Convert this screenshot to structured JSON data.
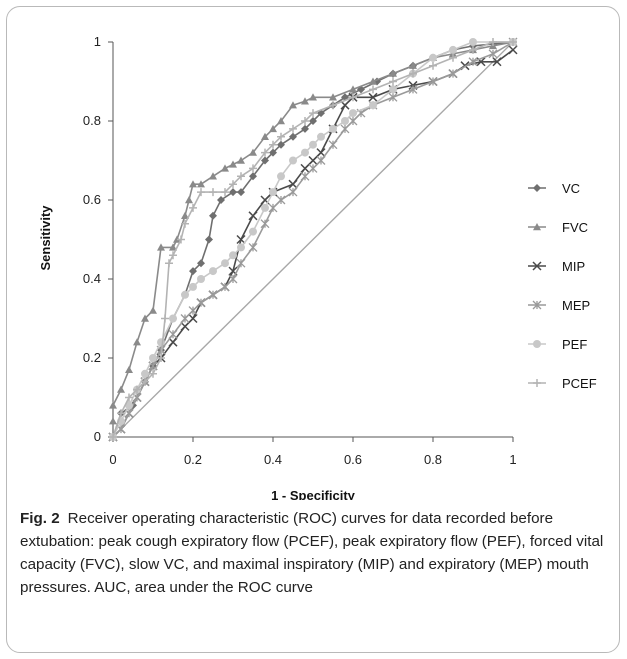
{
  "caption": {
    "label": "Fig. 2",
    "text": "Receiver operating characteristic (ROC) curves for data recorded before extubation: peak cough expiratory flow (PCEF), peak expiratory flow (PEF), forced vital capacity (FVC), slow VC, and maximal inspiratory (MIP) and expiratory (MEP) mouth pressures. AUC, area under the ROC curve"
  },
  "chart_data": {
    "type": "line",
    "title": "",
    "xlabel": "1 - Specificity",
    "ylabel": "Sensitivity",
    "xlim": [
      0,
      1
    ],
    "ylim": [
      0,
      1
    ],
    "x_ticks": [
      "0",
      "0.2",
      "0.4",
      "0.6",
      "0.8",
      "1"
    ],
    "y_ticks": [
      "0",
      "0.2",
      "0.4",
      "0.6",
      "0.8",
      "1"
    ],
    "grid": false,
    "legend_position": "right",
    "reference_line": [
      [
        0,
        0
      ],
      [
        1,
        1
      ]
    ],
    "series": [
      {
        "name": "VC",
        "color": "#6f6f6f",
        "marker": "diamond",
        "points": [
          [
            0,
            0
          ],
          [
            0.02,
            0.06
          ],
          [
            0.05,
            0.08
          ],
          [
            0.08,
            0.14
          ],
          [
            0.1,
            0.18
          ],
          [
            0.12,
            0.22
          ],
          [
            0.15,
            0.3
          ],
          [
            0.18,
            0.36
          ],
          [
            0.2,
            0.42
          ],
          [
            0.22,
            0.44
          ],
          [
            0.24,
            0.5
          ],
          [
            0.25,
            0.56
          ],
          [
            0.27,
            0.6
          ],
          [
            0.3,
            0.62
          ],
          [
            0.32,
            0.62
          ],
          [
            0.35,
            0.66
          ],
          [
            0.38,
            0.7
          ],
          [
            0.4,
            0.72
          ],
          [
            0.42,
            0.74
          ],
          [
            0.45,
            0.76
          ],
          [
            0.48,
            0.78
          ],
          [
            0.5,
            0.8
          ],
          [
            0.52,
            0.82
          ],
          [
            0.55,
            0.84
          ],
          [
            0.58,
            0.86
          ],
          [
            0.62,
            0.88
          ],
          [
            0.66,
            0.9
          ],
          [
            0.7,
            0.92
          ],
          [
            0.75,
            0.94
          ],
          [
            0.8,
            0.96
          ],
          [
            0.85,
            0.98
          ],
          [
            0.9,
            0.99
          ],
          [
            1,
            1
          ]
        ]
      },
      {
        "name": "FVC",
        "color": "#8a8a8a",
        "marker": "triangle",
        "points": [
          [
            0,
            0
          ],
          [
            0,
            0.04
          ],
          [
            0,
            0.08
          ],
          [
            0.02,
            0.12
          ],
          [
            0.04,
            0.17
          ],
          [
            0.06,
            0.24
          ],
          [
            0.08,
            0.3
          ],
          [
            0.1,
            0.32
          ],
          [
            0.12,
            0.48
          ],
          [
            0.15,
            0.48
          ],
          [
            0.16,
            0.5
          ],
          [
            0.18,
            0.56
          ],
          [
            0.19,
            0.6
          ],
          [
            0.2,
            0.64
          ],
          [
            0.22,
            0.64
          ],
          [
            0.25,
            0.66
          ],
          [
            0.28,
            0.68
          ],
          [
            0.3,
            0.69
          ],
          [
            0.32,
            0.7
          ],
          [
            0.35,
            0.72
          ],
          [
            0.38,
            0.76
          ],
          [
            0.4,
            0.78
          ],
          [
            0.42,
            0.8
          ],
          [
            0.45,
            0.84
          ],
          [
            0.48,
            0.85
          ],
          [
            0.5,
            0.86
          ],
          [
            0.55,
            0.86
          ],
          [
            0.6,
            0.88
          ],
          [
            0.65,
            0.9
          ],
          [
            0.7,
            0.92
          ],
          [
            0.75,
            0.94
          ],
          [
            0.8,
            0.96
          ],
          [
            0.85,
            0.97
          ],
          [
            0.9,
            0.98
          ],
          [
            0.95,
            0.99
          ],
          [
            1,
            1
          ]
        ]
      },
      {
        "name": "MIP",
        "color": "#4a4a4a",
        "marker": "x",
        "points": [
          [
            0,
            0
          ],
          [
            0.02,
            0.02
          ],
          [
            0.04,
            0.06
          ],
          [
            0.06,
            0.1
          ],
          [
            0.08,
            0.14
          ],
          [
            0.1,
            0.18
          ],
          [
            0.12,
            0.2
          ],
          [
            0.15,
            0.24
          ],
          [
            0.18,
            0.28
          ],
          [
            0.2,
            0.3
          ],
          [
            0.22,
            0.34
          ],
          [
            0.25,
            0.36
          ],
          [
            0.28,
            0.38
          ],
          [
            0.3,
            0.42
          ],
          [
            0.32,
            0.5
          ],
          [
            0.35,
            0.56
          ],
          [
            0.38,
            0.6
          ],
          [
            0.4,
            0.62
          ],
          [
            0.45,
            0.64
          ],
          [
            0.48,
            0.68
          ],
          [
            0.5,
            0.7
          ],
          [
            0.52,
            0.72
          ],
          [
            0.55,
            0.78
          ],
          [
            0.58,
            0.84
          ],
          [
            0.6,
            0.86
          ],
          [
            0.65,
            0.86
          ],
          [
            0.7,
            0.88
          ],
          [
            0.75,
            0.89
          ],
          [
            0.8,
            0.9
          ],
          [
            0.85,
            0.92
          ],
          [
            0.88,
            0.94
          ],
          [
            0.92,
            0.95
          ],
          [
            0.96,
            0.95
          ],
          [
            1,
            0.98
          ]
        ]
      },
      {
        "name": "MEP",
        "color": "#9a9a9a",
        "marker": "asterisk",
        "points": [
          [
            0,
            0
          ],
          [
            0.02,
            0.02
          ],
          [
            0.04,
            0.06
          ],
          [
            0.06,
            0.1
          ],
          [
            0.08,
            0.14
          ],
          [
            0.1,
            0.18
          ],
          [
            0.12,
            0.22
          ],
          [
            0.15,
            0.26
          ],
          [
            0.18,
            0.3
          ],
          [
            0.2,
            0.32
          ],
          [
            0.22,
            0.34
          ],
          [
            0.25,
            0.36
          ],
          [
            0.28,
            0.38
          ],
          [
            0.3,
            0.4
          ],
          [
            0.32,
            0.44
          ],
          [
            0.35,
            0.48
          ],
          [
            0.38,
            0.54
          ],
          [
            0.4,
            0.58
          ],
          [
            0.42,
            0.6
          ],
          [
            0.45,
            0.62
          ],
          [
            0.48,
            0.66
          ],
          [
            0.5,
            0.68
          ],
          [
            0.52,
            0.7
          ],
          [
            0.55,
            0.74
          ],
          [
            0.58,
            0.78
          ],
          [
            0.6,
            0.8
          ],
          [
            0.62,
            0.82
          ],
          [
            0.65,
            0.84
          ],
          [
            0.7,
            0.86
          ],
          [
            0.75,
            0.88
          ],
          [
            0.8,
            0.9
          ],
          [
            0.85,
            0.92
          ],
          [
            0.9,
            0.95
          ],
          [
            0.95,
            0.97
          ],
          [
            1,
            1
          ]
        ]
      },
      {
        "name": "PEF",
        "color": "#c8c8c8",
        "marker": "circle",
        "points": [
          [
            0,
            0
          ],
          [
            0.02,
            0.04
          ],
          [
            0.04,
            0.08
          ],
          [
            0.06,
            0.12
          ],
          [
            0.08,
            0.16
          ],
          [
            0.1,
            0.2
          ],
          [
            0.12,
            0.24
          ],
          [
            0.15,
            0.3
          ],
          [
            0.18,
            0.36
          ],
          [
            0.2,
            0.38
          ],
          [
            0.22,
            0.4
          ],
          [
            0.25,
            0.42
          ],
          [
            0.28,
            0.44
          ],
          [
            0.3,
            0.46
          ],
          [
            0.32,
            0.48
          ],
          [
            0.35,
            0.52
          ],
          [
            0.38,
            0.58
          ],
          [
            0.4,
            0.62
          ],
          [
            0.42,
            0.66
          ],
          [
            0.45,
            0.7
          ],
          [
            0.48,
            0.72
          ],
          [
            0.5,
            0.74
          ],
          [
            0.52,
            0.76
          ],
          [
            0.55,
            0.78
          ],
          [
            0.58,
            0.8
          ],
          [
            0.6,
            0.82
          ],
          [
            0.65,
            0.84
          ],
          [
            0.7,
            0.88
          ],
          [
            0.75,
            0.92
          ],
          [
            0.8,
            0.96
          ],
          [
            0.85,
            0.98
          ],
          [
            0.9,
            1
          ],
          [
            1,
            1
          ]
        ]
      },
      {
        "name": "PCEF",
        "color": "#b3b3b3",
        "marker": "plus",
        "points": [
          [
            0,
            0
          ],
          [
            0.02,
            0.06
          ],
          [
            0.04,
            0.1
          ],
          [
            0.06,
            0.12
          ],
          [
            0.08,
            0.14
          ],
          [
            0.1,
            0.16
          ],
          [
            0.12,
            0.2
          ],
          [
            0.13,
            0.3
          ],
          [
            0.14,
            0.44
          ],
          [
            0.15,
            0.46
          ],
          [
            0.17,
            0.5
          ],
          [
            0.18,
            0.54
          ],
          [
            0.2,
            0.58
          ],
          [
            0.22,
            0.62
          ],
          [
            0.25,
            0.62
          ],
          [
            0.28,
            0.62
          ],
          [
            0.3,
            0.64
          ],
          [
            0.32,
            0.66
          ],
          [
            0.35,
            0.68
          ],
          [
            0.38,
            0.72
          ],
          [
            0.4,
            0.74
          ],
          [
            0.42,
            0.76
          ],
          [
            0.45,
            0.78
          ],
          [
            0.48,
            0.8
          ],
          [
            0.5,
            0.82
          ],
          [
            0.55,
            0.84
          ],
          [
            0.6,
            0.86
          ],
          [
            0.65,
            0.88
          ],
          [
            0.7,
            0.9
          ],
          [
            0.75,
            0.92
          ],
          [
            0.8,
            0.94
          ],
          [
            0.85,
            0.96
          ],
          [
            0.9,
            0.98
          ],
          [
            0.95,
            1
          ],
          [
            1,
            1
          ]
        ]
      }
    ]
  }
}
